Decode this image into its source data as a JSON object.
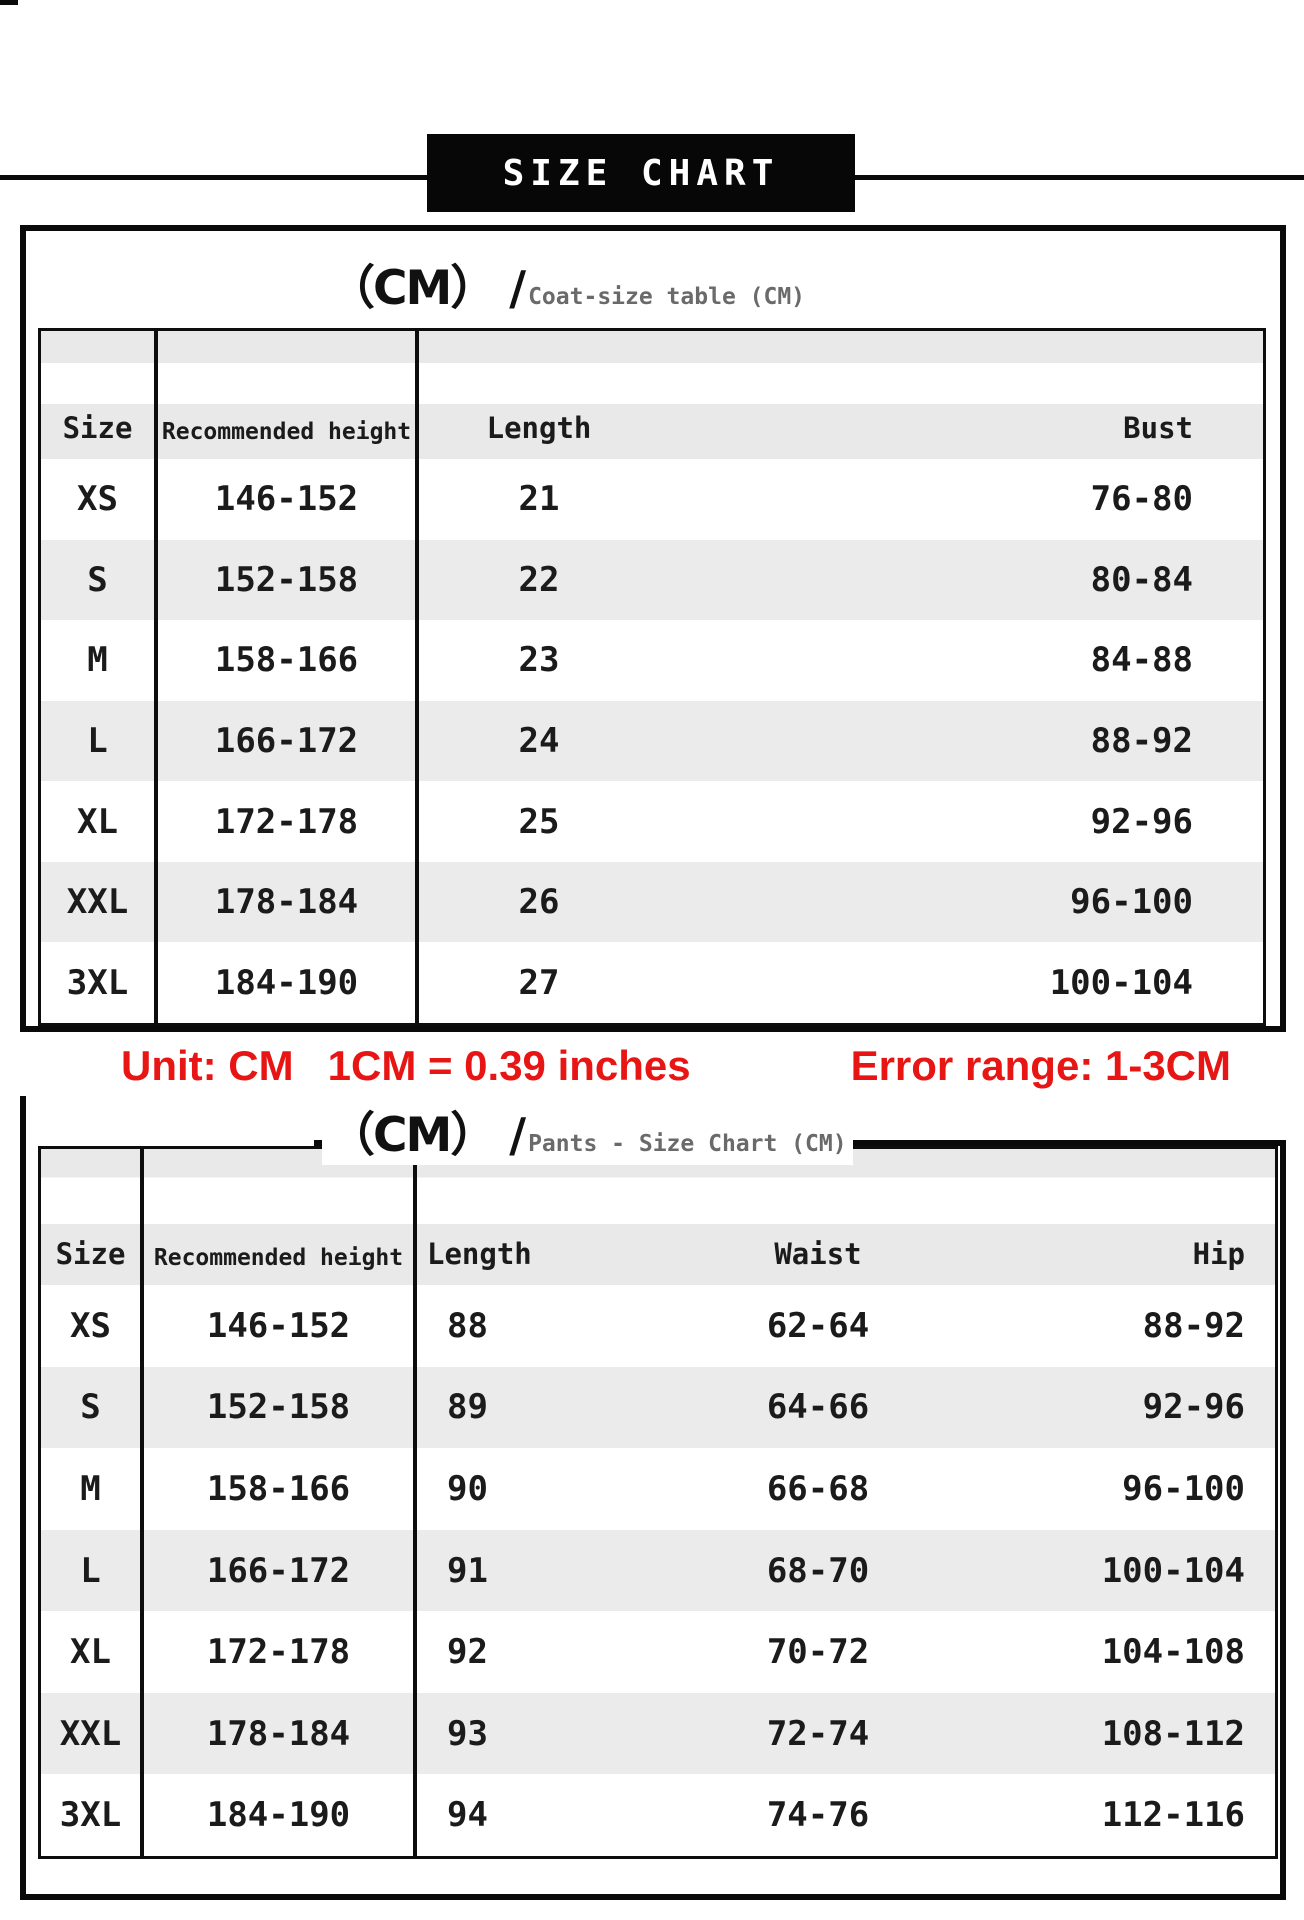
{
  "banner": {
    "title": "SIZE CHART"
  },
  "colors": {
    "accent_red": "#e81515",
    "row_stripe": "#ebebeb",
    "header_gray": "#e9e9e9",
    "border_black": "#0a0a0a"
  },
  "notes": {
    "unit_label": "Unit: CM",
    "unit_conversion": "1CM = 0.39 inches",
    "error_range": "Error range: 1-3CM"
  },
  "tables": [
    {
      "title_cm": "（CM）",
      "title_slash": "/",
      "subtitle": "Coat-size table (CM)",
      "columns": [
        "Size",
        "Recommended height",
        "Length",
        "Bust"
      ],
      "rows": [
        [
          "XS",
          "146-152",
          "21",
          "76-80"
        ],
        [
          "S",
          "152-158",
          "22",
          "80-84"
        ],
        [
          "M",
          "158-166",
          "23",
          "84-88"
        ],
        [
          "L",
          "166-172",
          "24",
          "88-92"
        ],
        [
          "XL",
          "172-178",
          "25",
          "92-96"
        ],
        [
          "XXL",
          "178-184",
          "26",
          "96-100"
        ],
        [
          "3XL",
          "184-190",
          "27",
          "100-104"
        ]
      ]
    },
    {
      "title_cm": "（CM）",
      "title_slash": "/",
      "subtitle": "Pants - Size Chart (CM)",
      "columns": [
        "Size",
        "Recommended height",
        "Length",
        "Waist",
        "Hip"
      ],
      "rows": [
        [
          "XS",
          "146-152",
          "88",
          "62-64",
          "88-92"
        ],
        [
          "S",
          "152-158",
          "89",
          "64-66",
          "92-96"
        ],
        [
          "M",
          "158-166",
          "90",
          "66-68",
          "96-100"
        ],
        [
          "L",
          "166-172",
          "91",
          "68-70",
          "100-104"
        ],
        [
          "XL",
          "172-178",
          "92",
          "70-72",
          "104-108"
        ],
        [
          "XXL",
          "178-184",
          "93",
          "72-74",
          "108-112"
        ],
        [
          "3XL",
          "184-190",
          "94",
          "74-76",
          "112-116"
        ]
      ]
    }
  ]
}
